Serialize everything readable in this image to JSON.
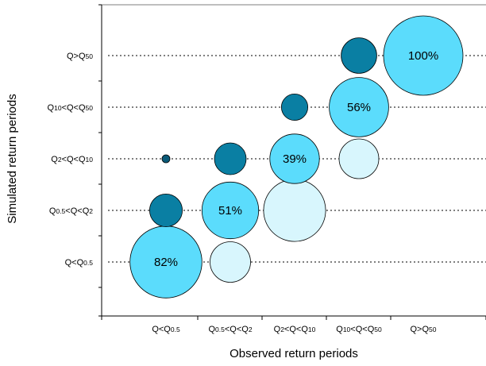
{
  "chart_data": {
    "type": "scatter",
    "title": "",
    "xlabel": "Observed return periods",
    "ylabel": "Simulated return periods",
    "x_categories": [
      {
        "main": "Q<Q",
        "sub": "0.5"
      },
      {
        "main": "Q",
        "sub": "0.5",
        "mid": "<Q<Q",
        "sub2": "2"
      },
      {
        "main": "Q",
        "sub": "2",
        "mid": "<Q<Q",
        "sub2": "10"
      },
      {
        "main": "Q",
        "sub": "10",
        "mid": "<Q<Q",
        "sub2": "50"
      },
      {
        "main": "Q>Q",
        "sub": "50"
      }
    ],
    "y_categories": [
      {
        "main": "Q<Q",
        "sub": "0.5"
      },
      {
        "main": "Q",
        "sub": "0.5",
        "mid": "<Q<Q",
        "sub2": "2"
      },
      {
        "main": "Q",
        "sub": "2",
        "mid": "<Q<Q",
        "sub2": "10"
      },
      {
        "main": "Q",
        "sub": "10",
        "mid": "<Q<Q",
        "sub2": "50"
      },
      {
        "main": "Q>Q",
        "sub": "50"
      }
    ],
    "bubbles": [
      {
        "x": 0,
        "y": 0,
        "size": 82,
        "color": "#5bdcfc",
        "label": "82%"
      },
      {
        "x": 0,
        "y": 1,
        "size": 17,
        "color": "#0a7fa3",
        "label": ""
      },
      {
        "x": 0,
        "y": 2,
        "size": 1,
        "color": "#0a5a78",
        "label": ""
      },
      {
        "x": 1,
        "y": 0,
        "size": 26,
        "color": "#d8f6fd",
        "label": ""
      },
      {
        "x": 1,
        "y": 1,
        "size": 51,
        "color": "#5bdcfc",
        "label": "51%"
      },
      {
        "x": 1,
        "y": 2,
        "size": 16,
        "color": "#0a7fa3",
        "label": ""
      },
      {
        "x": 2,
        "y": 1,
        "size": 61,
        "color": "#d8f6fd",
        "label": ""
      },
      {
        "x": 2,
        "y": 2,
        "size": 39,
        "color": "#5bdcfc",
        "label": "39%"
      },
      {
        "x": 2,
        "y": 3,
        "size": 11,
        "color": "#0a7fa3",
        "label": ""
      },
      {
        "x": 3,
        "y": 2,
        "size": 25,
        "color": "#d8f6fd",
        "label": ""
      },
      {
        "x": 3,
        "y": 3,
        "size": 56,
        "color": "#5bdcfc",
        "label": "56%"
      },
      {
        "x": 3,
        "y": 4,
        "size": 20,
        "color": "#0a7fa3",
        "label": ""
      },
      {
        "x": 4,
        "y": 4,
        "size": 100,
        "color": "#5bdcfc",
        "label": "100%"
      }
    ],
    "grid": "horizontal dotted"
  }
}
